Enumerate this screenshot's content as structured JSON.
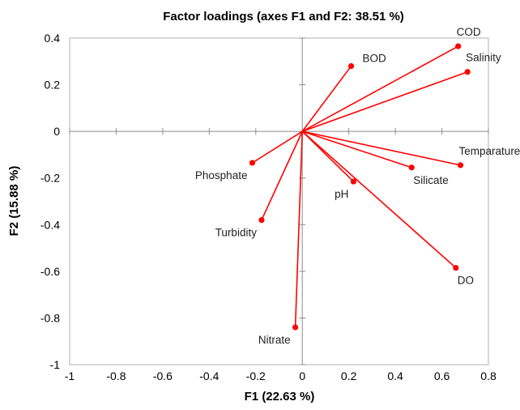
{
  "chart_data": {
    "type": "scatter",
    "subtype": "biplot-vectors",
    "title": "Factor loadings (axes F1 and F2: 38.51 %)",
    "xlabel": "F1 (22.63 %)",
    "ylabel": "F2 (15.88 %)",
    "xlim": [
      -1,
      0.8
    ],
    "ylim": [
      -1,
      0.4
    ],
    "xticks": [
      -1,
      -0.8,
      -0.6,
      -0.4,
      -0.2,
      0,
      0.2,
      0.4,
      0.6,
      0.8
    ],
    "yticks": [
      -1,
      -0.8,
      -0.6,
      -0.4,
      -0.2,
      0,
      0.2,
      0.4
    ],
    "xtick_labels": [
      "-1",
      "-0.8",
      "-0.6",
      "-0.4",
      "-0.2",
      "0",
      "0.2",
      "0.4",
      "0.6",
      "0.8"
    ],
    "ytick_labels": [
      "-1",
      "-0.8",
      "-0.6",
      "-0.4",
      "-0.2",
      "0",
      "0.2",
      "0.4"
    ],
    "grid": false,
    "legend": "none",
    "vector_origin": [
      0,
      0
    ],
    "color": "#ff0000",
    "points": [
      {
        "name": "COD",
        "x": 0.67,
        "y": 0.365,
        "label_pos": "above-right"
      },
      {
        "name": "Salinity",
        "x": 0.71,
        "y": 0.255,
        "label_pos": "above-right"
      },
      {
        "name": "BOD",
        "x": 0.21,
        "y": 0.28,
        "label_pos": "right"
      },
      {
        "name": "Temparature",
        "x": 0.68,
        "y": -0.145,
        "label_pos": "above-right"
      },
      {
        "name": "Silicate",
        "x": 0.47,
        "y": -0.155,
        "label_pos": "below-right"
      },
      {
        "name": "pH",
        "x": 0.22,
        "y": -0.215,
        "label_pos": "below-left"
      },
      {
        "name": "DO",
        "x": 0.66,
        "y": -0.585,
        "label_pos": "below-right"
      },
      {
        "name": "Phosphate",
        "x": -0.215,
        "y": -0.135,
        "label_pos": "below-left"
      },
      {
        "name": "Turbidity",
        "x": -0.175,
        "y": -0.38,
        "label_pos": "below-left"
      },
      {
        "name": "Nitrate",
        "x": -0.03,
        "y": -0.84,
        "label_pos": "below-left"
      }
    ]
  }
}
